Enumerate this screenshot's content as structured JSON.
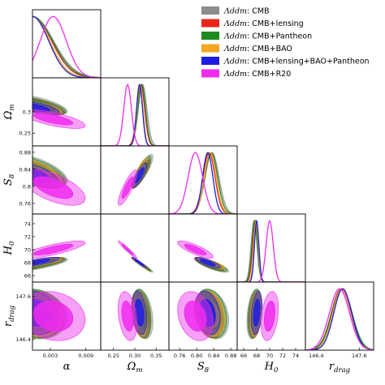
{
  "chart_data": {
    "type": "corner",
    "parameters": [
      {
        "key": "alpha",
        "label_main": "α",
        "label_sub": "",
        "ticks": [
          "0.003",
          "0.009"
        ],
        "range": [
          0.0,
          0.0115
        ],
        "tick_values": [
          0.003,
          0.009
        ]
      },
      {
        "key": "Omega_m",
        "label_main": "Ω",
        "label_sub": "m",
        "ticks": [
          "0.25",
          "0.30",
          "0.35"
        ],
        "range": [
          0.22,
          0.38
        ],
        "tick_values": [
          0.25,
          0.3,
          0.35
        ]
      },
      {
        "key": "S_8",
        "label_main": "S",
        "label_sub": "8",
        "ticks": [
          "0.76",
          "0.80",
          "0.84",
          "0.88"
        ],
        "range": [
          0.735,
          0.895
        ],
        "tick_values": [
          0.76,
          0.8,
          0.84,
          0.88
        ]
      },
      {
        "key": "H_0",
        "label_main": "H",
        "label_sub": "0",
        "ticks": [
          "66",
          "68",
          "70",
          "72",
          "74"
        ],
        "range": [
          65.0,
          75.5
        ],
        "tick_values": [
          66,
          68,
          70,
          72,
          74
        ]
      },
      {
        "key": "r_drag",
        "label_main": "r",
        "label_sub": "drag",
        "ticks": [
          "146.4",
          "147.6"
        ],
        "range": [
          146.1,
          148.0
        ],
        "tick_values": [
          146.4,
          147.6
        ]
      }
    ],
    "y_axis_ticks": {
      "Omega_m": {
        "ticks": [
          "0.25",
          "0.3"
        ],
        "tick_values": [
          0.25,
          0.3
        ]
      },
      "S_8": {
        "ticks": [
          "0.76",
          "0.8",
          "0.84",
          "0.88"
        ],
        "tick_values": [
          0.76,
          0.8,
          0.84,
          0.88
        ]
      },
      "H_0": {
        "ticks": [
          "66",
          "68",
          "70",
          "72",
          "74"
        ],
        "tick_values": [
          66,
          68,
          70,
          72,
          74
        ]
      },
      "r_drag": {
        "ticks": [
          "146.4",
          "147.6"
        ],
        "tick_values": [
          146.4,
          147.6
        ]
      }
    },
    "series": [
      {
        "name_model": "Λddm",
        "name_data": "CMB",
        "color": "#8c8c8c",
        "mean": [
          0.0005,
          0.318,
          0.836,
          67.6,
          147.1
        ],
        "sigma": [
          0.0022,
          0.01,
          0.016,
          0.45,
          0.28
        ],
        "corr": {
          "0-1": -0.7,
          "0-2": -0.6,
          "0-3": 0.8,
          "0-4": -0.15,
          "1-2": 0.85,
          "1-3": -0.97,
          "1-4": -0.3,
          "2-3": -0.82,
          "2-4": -0.25,
          "3-4": 0.3
        }
      },
      {
        "name_model": "Λddm",
        "name_data": "CMB+lensing",
        "color": "#e8231c",
        "mean": [
          0.0005,
          0.314,
          0.829,
          67.8,
          147.1
        ],
        "sigma": [
          0.002,
          0.009,
          0.014,
          0.42,
          0.27
        ],
        "corr": {
          "0-1": -0.7,
          "0-2": -0.6,
          "0-3": 0.8,
          "0-4": -0.15,
          "1-2": 0.85,
          "1-3": -0.97,
          "1-4": -0.3,
          "2-3": -0.82,
          "2-4": -0.25,
          "3-4": 0.3
        }
      },
      {
        "name_model": "Λddm",
        "name_data": "CMB+Pantheon",
        "color": "#1f8a1f",
        "mean": [
          0.0005,
          0.316,
          0.834,
          67.7,
          147.12
        ],
        "sigma": [
          0.0021,
          0.009,
          0.015,
          0.43,
          0.28
        ],
        "corr": {
          "0-1": -0.7,
          "0-2": -0.6,
          "0-3": 0.8,
          "0-4": -0.15,
          "1-2": 0.85,
          "1-3": -0.97,
          "1-4": -0.3,
          "2-3": -0.82,
          "2-4": -0.25,
          "3-4": 0.3
        }
      },
      {
        "name_model": "Λddm",
        "name_data": "CMB+BAO",
        "color": "#f5a623",
        "mean": [
          0.0004,
          0.312,
          0.832,
          67.9,
          147.12
        ],
        "sigma": [
          0.0018,
          0.007,
          0.014,
          0.35,
          0.26
        ],
        "corr": {
          "0-1": -0.7,
          "0-2": -0.6,
          "0-3": 0.8,
          "0-4": -0.15,
          "1-2": 0.85,
          "1-3": -0.97,
          "1-4": -0.3,
          "2-3": -0.82,
          "2-4": -0.25,
          "3-4": 0.3
        }
      },
      {
        "name_model": "Λddm",
        "name_data": "CMB+lensing+BAO+Pantheon",
        "color": "#1c1ce0",
        "mean": [
          0.0004,
          0.311,
          0.826,
          68.0,
          147.14
        ],
        "sigma": [
          0.0017,
          0.007,
          0.012,
          0.34,
          0.25
        ],
        "corr": {
          "0-1": -0.7,
          "0-2": -0.6,
          "0-3": 0.8,
          "0-4": -0.15,
          "1-2": 0.85,
          "1-3": -0.97,
          "1-4": -0.3,
          "2-3": -0.82,
          "2-4": -0.25,
          "3-4": 0.3
        }
      },
      {
        "name_model": "Λddm",
        "name_data": "CMB+R20",
        "color": "#ee2cee",
        "mean": [
          0.0035,
          0.283,
          0.797,
          70.0,
          147.05
        ],
        "sigma": [
          0.0022,
          0.009,
          0.017,
          0.55,
          0.28
        ],
        "corr": {
          "0-1": -0.7,
          "0-2": -0.6,
          "0-3": 0.8,
          "0-4": -0.15,
          "1-2": 0.85,
          "1-3": -0.97,
          "1-4": -0.3,
          "2-3": -0.82,
          "2-4": -0.25,
          "3-4": 0.3
        }
      }
    ],
    "one_sided_params": [
      "alpha"
    ],
    "legend_position": "top-right",
    "grid": false
  }
}
